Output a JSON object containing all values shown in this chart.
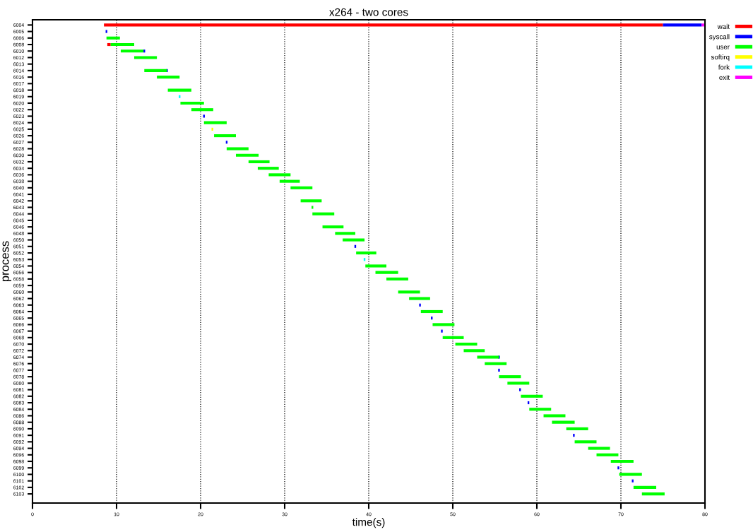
{
  "chart_data": {
    "type": "bar",
    "orientation": "horizontal",
    "title": "x264 - two cores",
    "xlabel": "time(s)",
    "ylabel": "process",
    "categories": [
      "6004",
      "6005",
      "6006",
      "6008",
      "6010",
      "6012",
      "6013",
      "6014",
      "6016",
      "6017",
      "6018",
      "6019",
      "6020",
      "6022",
      "6023",
      "6024",
      "6025",
      "6026",
      "6027",
      "6028",
      "6030",
      "6032",
      "6034",
      "6036",
      "6038",
      "6040",
      "6041",
      "6042",
      "6043",
      "6044",
      "6045",
      "6046",
      "6048",
      "6050",
      "6051",
      "6052",
      "6053",
      "6054",
      "6056",
      "6058",
      "6059",
      "6060",
      "6062",
      "6063",
      "6064",
      "6065",
      "6066",
      "6067",
      "6068",
      "6070",
      "6072",
      "6074",
      "6076",
      "6077",
      "6078",
      "6080",
      "6081",
      "6082",
      "6083",
      "6084",
      "6086",
      "6088",
      "6090",
      "6091",
      "6092",
      "6094",
      "6096",
      "6098",
      "6099",
      "6100",
      "6101",
      "6102",
      "6103"
    ],
    "xlim": [
      0,
      80
    ],
    "xticks": [
      0,
      10,
      20,
      30,
      40,
      50,
      60,
      70,
      80
    ],
    "grid": "x",
    "legend": "top right",
    "series": [
      {
        "name": "wait",
        "color": "#ff0000",
        "base": [
          8.5,
          null,
          null,
          8.9,
          null,
          null,
          null,
          null,
          null,
          null,
          null,
          null,
          null,
          null,
          null,
          null,
          null,
          null,
          null,
          null,
          null,
          null,
          null,
          null,
          null,
          null,
          null,
          null,
          null,
          null,
          null,
          null,
          null,
          null,
          null,
          null,
          null,
          null,
          null,
          null,
          null,
          null,
          null,
          null,
          null,
          null,
          null,
          null,
          null,
          null,
          null,
          null,
          null,
          null,
          null,
          null,
          null,
          null,
          null,
          null,
          null,
          null,
          null,
          null,
          null,
          null,
          null,
          null,
          null,
          null,
          null,
          null,
          null
        ],
        "values": [
          66.5,
          null,
          null,
          0.4,
          null,
          null,
          null,
          null,
          null,
          null,
          null,
          null,
          null,
          null,
          null,
          null,
          null,
          null,
          null,
          null,
          null,
          null,
          null,
          null,
          null,
          null,
          null,
          null,
          null,
          null,
          null,
          null,
          null,
          null,
          null,
          null,
          null,
          null,
          null,
          null,
          null,
          null,
          null,
          null,
          null,
          null,
          null,
          null,
          null,
          null,
          null,
          null,
          null,
          null,
          null,
          null,
          null,
          null,
          null,
          null,
          null,
          null,
          null,
          null,
          null,
          null,
          null,
          null,
          null,
          null,
          null,
          null,
          null
        ]
      },
      {
        "name": "syscall",
        "color": "#0000ff",
        "base": [
          75,
          8.7,
          null,
          null,
          13.2,
          null,
          null,
          15.9,
          null,
          null,
          null,
          null,
          null,
          null,
          20.3,
          null,
          null,
          null,
          23.0,
          null,
          null,
          null,
          null,
          null,
          null,
          null,
          null,
          null,
          null,
          null,
          null,
          null,
          null,
          null,
          38.3,
          null,
          null,
          null,
          null,
          null,
          null,
          null,
          null,
          46.0,
          null,
          47.4,
          null,
          48.6,
          null,
          null,
          null,
          55.4,
          null,
          55.4,
          null,
          null,
          57.9,
          null,
          58.9,
          null,
          null,
          null,
          null,
          64.3,
          null,
          null,
          null,
          null,
          69.6,
          null,
          71.3,
          null,
          null
        ],
        "values": [
          4.6,
          0.2,
          null,
          null,
          0.2,
          null,
          null,
          0.2,
          null,
          null,
          null,
          null,
          null,
          null,
          0.2,
          null,
          null,
          null,
          0.2,
          null,
          null,
          null,
          null,
          null,
          null,
          null,
          null,
          null,
          null,
          null,
          null,
          null,
          null,
          null,
          0.2,
          null,
          null,
          null,
          null,
          null,
          null,
          null,
          null,
          0.2,
          null,
          0.2,
          null,
          0.2,
          null,
          null,
          null,
          0.2,
          null,
          0.2,
          null,
          null,
          0.2,
          null,
          0.2,
          null,
          null,
          null,
          null,
          0.2,
          null,
          null,
          null,
          null,
          0.2,
          null,
          0.2,
          null,
          null
        ]
      },
      {
        "name": "user",
        "color": "#00ff00",
        "base": [
          null,
          null,
          8.8,
          9.3,
          10.5,
          12.1,
          null,
          13.3,
          14.8,
          null,
          16.1,
          null,
          17.6,
          18.9,
          null,
          20.4,
          null,
          21.6,
          null,
          23.1,
          24.2,
          25.7,
          26.8,
          28.1,
          29.4,
          30.7,
          null,
          31.9,
          33.2,
          33.3,
          null,
          34.5,
          36.0,
          36.9,
          null,
          38.5,
          null,
          39.6,
          40.8,
          42.1,
          null,
          43.5,
          44.8,
          null,
          46.2,
          null,
          47.6,
          null,
          48.8,
          50.3,
          51.3,
          52.9,
          53.8,
          null,
          55.5,
          56.5,
          null,
          58.1,
          null,
          59.1,
          60.8,
          61.8,
          63.5,
          null,
          64.5,
          66.1,
          67.1,
          68.8,
          null,
          69.8,
          null,
          71.5,
          72.5
        ],
        "values": [
          null,
          null,
          1.6,
          2.8,
          2.7,
          2.7,
          null,
          2.7,
          2.7,
          null,
          2.8,
          null,
          2.8,
          2.6,
          null,
          2.7,
          null,
          2.6,
          null,
          2.6,
          2.7,
          2.5,
          2.5,
          2.6,
          2.4,
          2.6,
          null,
          2.5,
          0.2,
          2.6,
          null,
          2.5,
          2.4,
          2.6,
          null,
          2.4,
          null,
          2.5,
          2.7,
          2.6,
          null,
          2.6,
          2.5,
          null,
          2.6,
          null,
          2.6,
          null,
          2.5,
          2.6,
          2.5,
          2.6,
          2.6,
          null,
          2.6,
          2.6,
          null,
          2.6,
          null,
          2.6,
          2.6,
          2.7,
          2.6,
          null,
          2.6,
          2.6,
          2.6,
          2.7,
          null,
          2.7,
          null,
          2.7,
          2.7
        ]
      },
      {
        "name": "softirq",
        "color": "#ffff00",
        "base": [
          null,
          null,
          null,
          null,
          null,
          null,
          null,
          null,
          null,
          null,
          null,
          null,
          null,
          null,
          null,
          null,
          21.3,
          null,
          null,
          null,
          null,
          null,
          null,
          null,
          null,
          null,
          null,
          null,
          null,
          null,
          null,
          null,
          null,
          null,
          null,
          null,
          null,
          null,
          null,
          null,
          null,
          null,
          null,
          null,
          null,
          null,
          null,
          null,
          null,
          null,
          null,
          null,
          null,
          null,
          null,
          null,
          null,
          null,
          null,
          null,
          null,
          null,
          null,
          null,
          null,
          null,
          null,
          null,
          null,
          null,
          null,
          null,
          null
        ],
        "values": [
          null,
          null,
          null,
          null,
          null,
          null,
          null,
          null,
          null,
          null,
          null,
          null,
          null,
          null,
          null,
          null,
          0.2,
          null,
          null,
          null,
          null,
          null,
          null,
          null,
          null,
          null,
          null,
          null,
          null,
          null,
          null,
          null,
          null,
          null,
          null,
          null,
          null,
          null,
          null,
          null,
          null,
          null,
          null,
          null,
          null,
          null,
          null,
          null,
          null,
          null,
          null,
          null,
          null,
          null,
          null,
          null,
          null,
          null,
          null,
          null,
          null,
          null,
          null,
          null,
          null,
          null,
          null,
          null,
          null,
          null,
          null,
          null,
          null
        ]
      },
      {
        "name": "fork",
        "color": "#00ffff",
        "base": [
          null,
          null,
          null,
          null,
          null,
          null,
          null,
          null,
          null,
          null,
          null,
          17.4,
          null,
          null,
          null,
          null,
          null,
          null,
          null,
          null,
          null,
          null,
          null,
          null,
          null,
          null,
          null,
          null,
          null,
          null,
          null,
          null,
          null,
          null,
          null,
          null,
          39.4,
          null,
          null,
          null,
          null,
          null,
          null,
          null,
          null,
          null,
          null,
          null,
          null,
          null,
          null,
          null,
          null,
          null,
          null,
          null,
          null,
          null,
          null,
          null,
          null,
          null,
          null,
          null,
          null,
          null,
          null,
          null,
          null,
          null,
          null,
          null,
          null
        ],
        "values": [
          null,
          null,
          null,
          null,
          null,
          null,
          null,
          null,
          null,
          null,
          null,
          0.2,
          null,
          null,
          null,
          null,
          null,
          null,
          null,
          null,
          null,
          null,
          null,
          null,
          null,
          null,
          null,
          null,
          null,
          null,
          null,
          null,
          null,
          null,
          null,
          null,
          0.2,
          null,
          null,
          null,
          null,
          null,
          null,
          null,
          null,
          null,
          null,
          null,
          null,
          null,
          null,
          null,
          null,
          null,
          null,
          null,
          null,
          null,
          null,
          null,
          null,
          null,
          null,
          null,
          null,
          null,
          null,
          null,
          null,
          null,
          null,
          null,
          null
        ]
      },
      {
        "name": "exit",
        "color": "#ff00ff",
        "base": [
          79.6,
          null,
          null,
          null,
          null,
          null,
          null,
          null,
          null,
          null,
          null,
          null,
          null,
          null,
          null,
          null,
          null,
          null,
          null,
          null,
          null,
          null,
          null,
          null,
          null,
          null,
          null,
          null,
          null,
          null,
          null,
          null,
          null,
          null,
          null,
          null,
          null,
          null,
          null,
          null,
          null,
          null,
          null,
          null,
          null,
          null,
          null,
          null,
          null,
          null,
          null,
          null,
          null,
          null,
          null,
          null,
          null,
          null,
          null,
          null,
          null,
          null,
          null,
          null,
          null,
          null,
          null,
          null,
          null,
          null,
          null,
          null,
          null
        ],
        "values": [
          0.3,
          null,
          null,
          null,
          null,
          null,
          null,
          null,
          null,
          null,
          null,
          null,
          null,
          null,
          null,
          null,
          null,
          null,
          null,
          null,
          null,
          null,
          null,
          null,
          null,
          null,
          null,
          null,
          null,
          null,
          null,
          null,
          null,
          null,
          null,
          null,
          null,
          null,
          null,
          null,
          null,
          null,
          null,
          null,
          null,
          null,
          null,
          null,
          null,
          null,
          null,
          null,
          null,
          null,
          null,
          null,
          null,
          null,
          null,
          null,
          null,
          null,
          null,
          null,
          null,
          null,
          null,
          null,
          null,
          null,
          null,
          null,
          null
        ]
      }
    ]
  }
}
